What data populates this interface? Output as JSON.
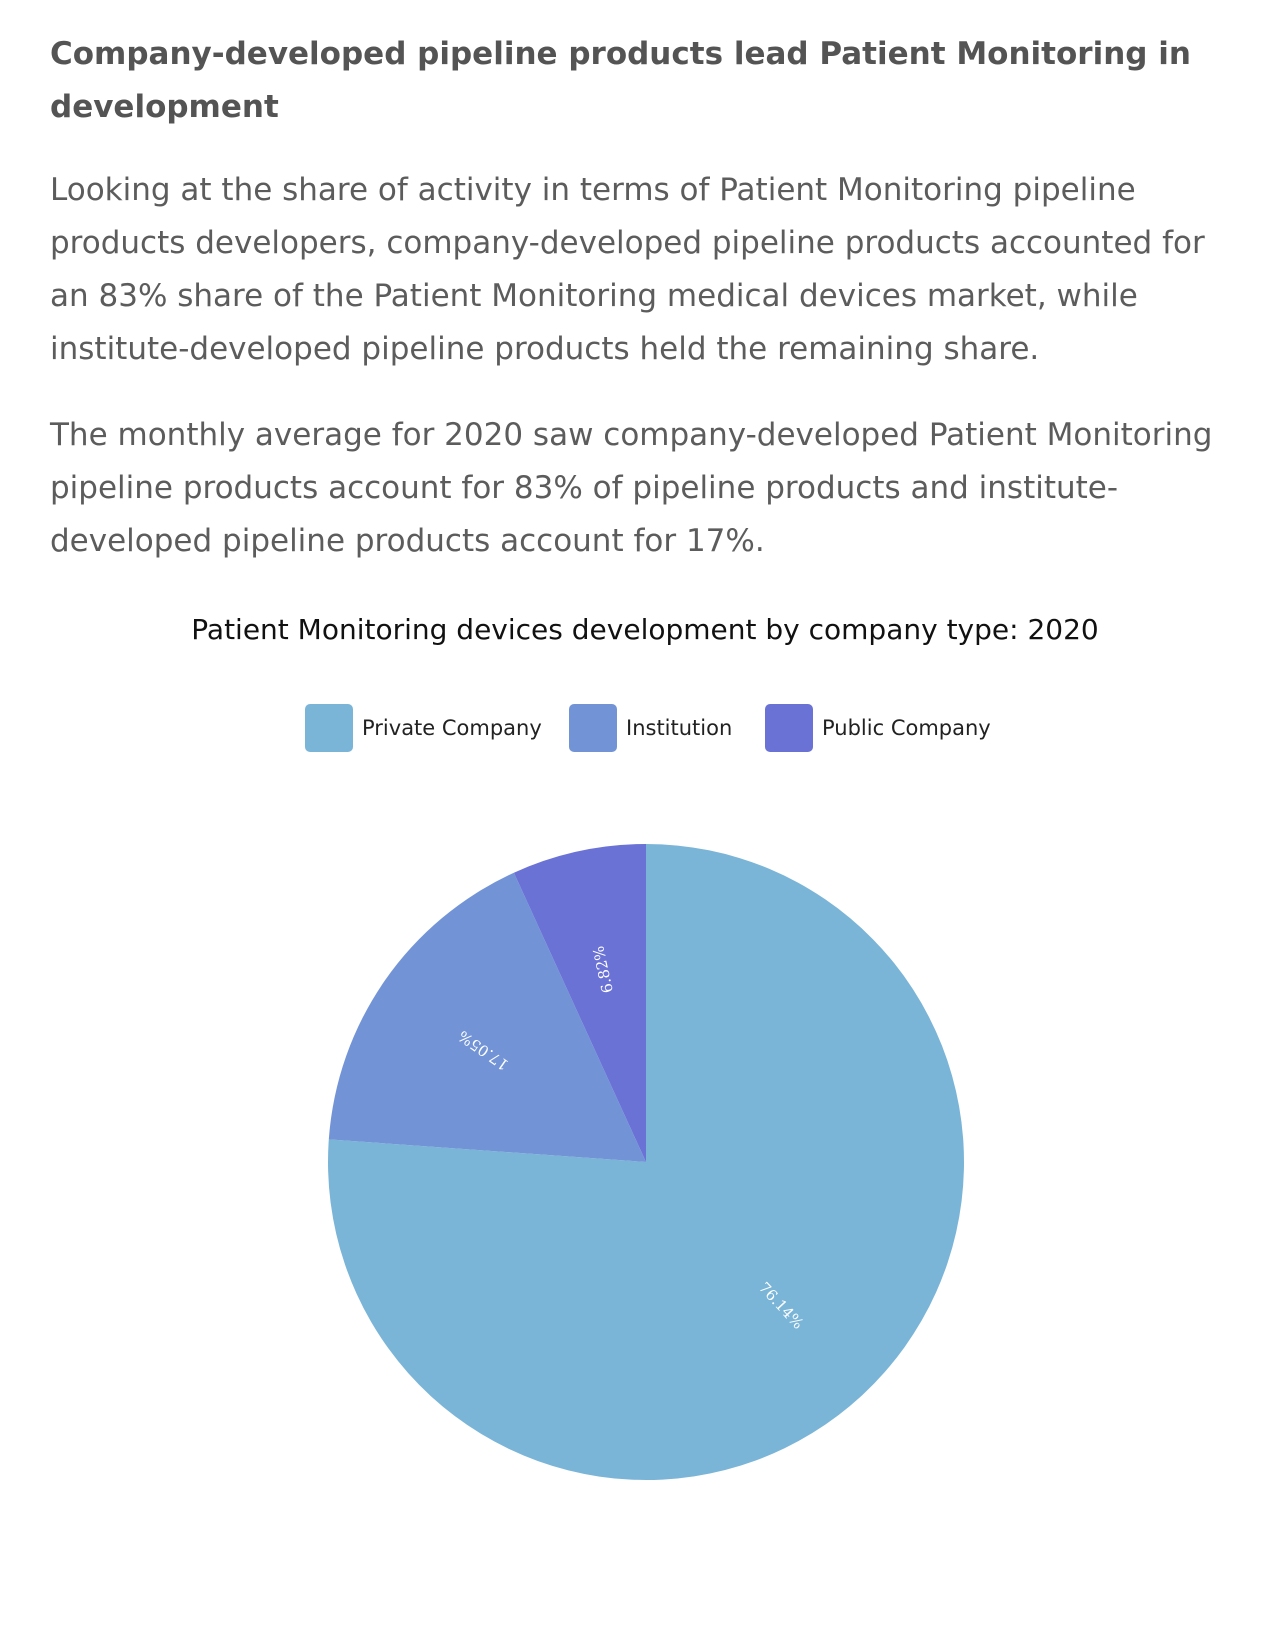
{
  "article": {
    "heading": "Company-developed pipeline products lead Patient Monitoring in development",
    "paragraph_1": "Looking at the share of activity in terms of Patient Monitoring pipeline products developers, company-developed pipeline products accounted for an 83% share of the Patient Monitoring medical devices market, while institute-developed pipeline products held the remaining share.",
    "paragraph_2": "The monthly average for 2020 saw company-developed Patient Monitoring pipeline products account for 83% of pipeline products and institute-developed pipeline products account for 17%."
  },
  "chart_data": {
    "type": "pie",
    "title": "Patient Monitoring devices development by company type: 2020",
    "legend_position": "top",
    "slices": [
      {
        "label": "Private Company",
        "value": 76.14,
        "display": "76.14%",
        "color": "#7ab5d8"
      },
      {
        "label": "Institution",
        "value": 17.05,
        "display": "17.05%",
        "color": "#7294d6"
      },
      {
        "label": "Public Company",
        "value": 6.82,
        "display": "6.82%",
        "color": "#6a72d6"
      }
    ]
  }
}
